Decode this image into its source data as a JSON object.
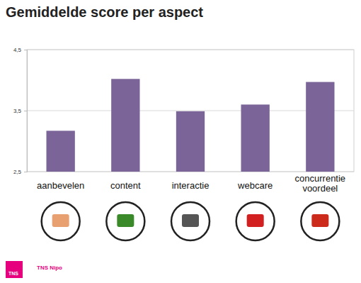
{
  "chart_data": {
    "type": "bar",
    "title": "Gemiddelde score per aspect",
    "categories": [
      "aanbevelen",
      "content",
      "interactie",
      "webcare",
      "concurrentie voordeel"
    ],
    "values": [
      3.17,
      4.02,
      3.49,
      3.6,
      3.97
    ],
    "color": "#7b6497",
    "ylim": [
      2.5,
      4.5
    ],
    "yticks": [
      {
        "value": 2.5,
        "label": "2,5"
      },
      {
        "value": 3.5,
        "label": "3,5"
      },
      {
        "value": 4.5,
        "label": "4,5"
      }
    ],
    "grid": true,
    "source": "TNS Nipo",
    "logo_text": "TNS"
  }
}
